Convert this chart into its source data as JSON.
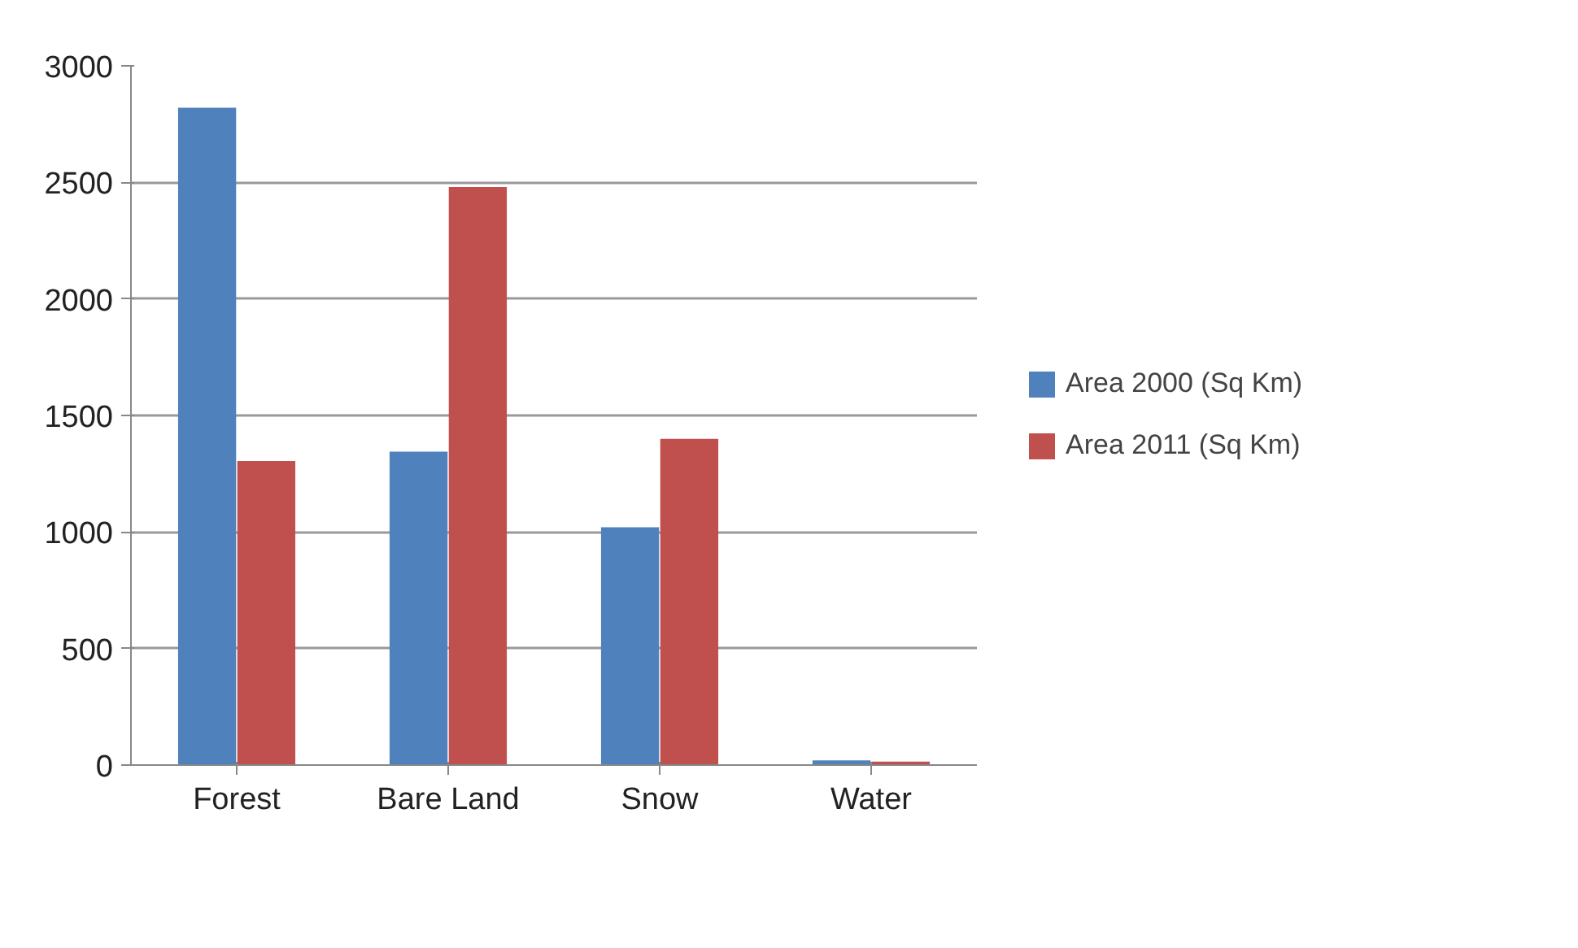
{
  "chart_data": {
    "type": "bar",
    "categories": [
      "Forest",
      "Bare Land",
      "Snow",
      "Water"
    ],
    "series": [
      {
        "name": "Area 2000 (Sq Km)",
        "color": "#4f81bd",
        "values": [
          2820,
          1345,
          1020,
          20
        ]
      },
      {
        "name": "Area 2011 (Sq Km)",
        "color": "#c0504d",
        "values": [
          1305,
          2480,
          1400,
          15
        ]
      }
    ],
    "ylim": [
      0,
      3000
    ],
    "yticks": [
      0,
      500,
      1000,
      1500,
      2000,
      2500,
      3000
    ],
    "grid": "y",
    "legend": "right"
  }
}
